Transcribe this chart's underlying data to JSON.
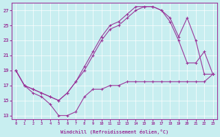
{
  "xlabel": "Windchill (Refroidissement éolien,°C)",
  "bg_color": "#c8eef0",
  "grid_color": "#ffffff",
  "line_color": "#993399",
  "xlim": [
    -0.5,
    23.5
  ],
  "ylim": [
    12.5,
    28
  ],
  "yticks": [
    13,
    15,
    17,
    19,
    21,
    23,
    25,
    27
  ],
  "xticks": [
    0,
    1,
    2,
    3,
    4,
    5,
    6,
    7,
    8,
    9,
    10,
    11,
    12,
    13,
    14,
    15,
    16,
    17,
    18,
    19,
    20,
    21,
    22,
    23
  ],
  "line1_x": [
    0,
    1,
    2,
    3,
    4,
    5,
    6,
    7,
    8,
    9,
    10,
    11,
    12,
    13,
    14,
    15,
    16,
    17,
    18,
    19,
    20,
    21,
    22,
    23
  ],
  "line1_y": [
    19.0,
    17.0,
    16.5,
    16.0,
    15.5,
    15.0,
    16.0,
    17.5,
    19.5,
    21.5,
    23.5,
    25.0,
    25.5,
    26.5,
    27.5,
    27.5,
    27.5,
    27.0,
    26.0,
    23.5,
    26.0,
    23.0,
    18.5,
    18.5
  ],
  "line2_x": [
    0,
    1,
    2,
    3,
    4,
    5,
    6,
    7,
    8,
    9,
    10,
    11,
    12,
    13,
    14,
    15,
    16,
    17,
    18,
    19,
    20,
    21,
    22,
    23
  ],
  "line2_y": [
    19.0,
    17.0,
    16.5,
    16.0,
    15.5,
    15.0,
    16.0,
    17.5,
    19.0,
    21.0,
    23.0,
    24.5,
    25.0,
    26.0,
    27.0,
    27.5,
    27.5,
    27.0,
    25.5,
    23.0,
    20.0,
    20.0,
    21.5,
    18.5
  ],
  "line3_x": [
    0,
    1,
    2,
    3,
    4,
    5,
    6,
    7,
    8,
    9,
    10,
    11,
    12,
    13,
    14,
    15,
    16,
    17,
    18,
    19,
    20,
    21,
    22,
    23
  ],
  "line3_y": [
    19.0,
    17.0,
    16.0,
    15.5,
    14.5,
    13.0,
    13.0,
    13.5,
    15.5,
    16.5,
    16.5,
    17.0,
    17.0,
    17.5,
    17.5,
    17.5,
    17.5,
    17.5,
    17.5,
    17.5,
    17.5,
    17.5,
    17.5,
    18.5
  ]
}
